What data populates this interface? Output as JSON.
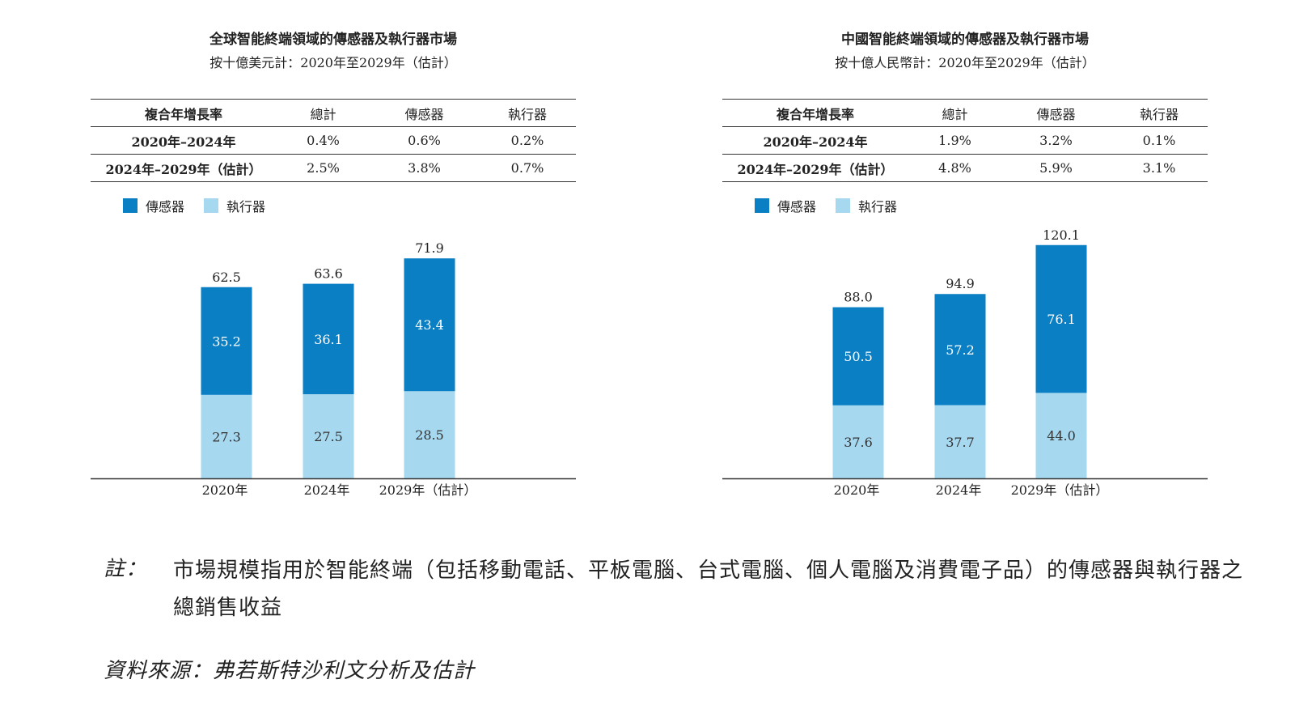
{
  "colors": {
    "sensor": "#0a7fc4",
    "actuator": "#a6d8f0",
    "axis": "#333333"
  },
  "legend": {
    "sensor": "傳感器",
    "actuator": "執行器"
  },
  "panels": [
    {
      "title": "全球智能終端領域的傳感器及執行器市場",
      "subtitle": "按十億美元計：2020年至2029年（估計）",
      "table": {
        "headers": [
          "複合年增長率",
          "總計",
          "傳感器",
          "執行器"
        ],
        "rows": [
          [
            "2020年–2024年",
            "0.4%",
            "0.6%",
            "0.2%"
          ],
          [
            "2024年–2029年（估計）",
            "2.5%",
            "3.8%",
            "0.7%"
          ]
        ]
      }
    },
    {
      "title": "中國智能終端領域的傳感器及執行器市場",
      "subtitle": "按十億人民幣計：2020年至2029年（估計）",
      "table": {
        "headers": [
          "複合年增長率",
          "總計",
          "傳感器",
          "執行器"
        ],
        "rows": [
          [
            "2020年–2024年",
            "1.9%",
            "3.2%",
            "0.1%"
          ],
          [
            "2024年–2029年（估計）",
            "4.8%",
            "5.9%",
            "3.1%"
          ]
        ]
      }
    }
  ],
  "chart_data": [
    {
      "type": "bar",
      "stacked": true,
      "categories": [
        "2020年",
        "2024年",
        "2029年（估計）"
      ],
      "series": [
        {
          "name": "執行器",
          "values": [
            27.3,
            27.5,
            28.5
          ]
        },
        {
          "name": "傳感器",
          "values": [
            35.2,
            36.1,
            43.4
          ]
        }
      ],
      "totals": [
        "62.5",
        "63.6",
        "71.9"
      ],
      "labels": {
        "sensor": [
          "35.2",
          "36.1",
          "43.4"
        ],
        "actuator": [
          "27.3",
          "27.5",
          "28.5"
        ]
      },
      "ylim": [
        0,
        80
      ],
      "legend_position": "top-left"
    },
    {
      "type": "bar",
      "stacked": true,
      "categories": [
        "2020年",
        "2024年",
        "2029年（估計）"
      ],
      "series": [
        {
          "name": "執行器",
          "values": [
            37.6,
            37.7,
            44.0
          ]
        },
        {
          "name": "傳感器",
          "values": [
            50.5,
            57.2,
            76.1
          ]
        }
      ],
      "totals": [
        "88.0",
        "94.9",
        "120.1"
      ],
      "labels": {
        "sensor": [
          "50.5",
          "57.2",
          "76.1"
        ],
        "actuator": [
          "37.6",
          "37.7",
          "44.0"
        ]
      },
      "ylim": [
        0,
        150
      ],
      "legend_position": "top-left"
    }
  ],
  "note": {
    "label": "註：",
    "text": "市場規模指用於智能終端（包括移動電話、平板電腦、台式電腦、個人電腦及消費電子品）的傳感器與執行器之總銷售收益"
  },
  "source": "資料來源：弗若斯特沙利文分析及估計"
}
